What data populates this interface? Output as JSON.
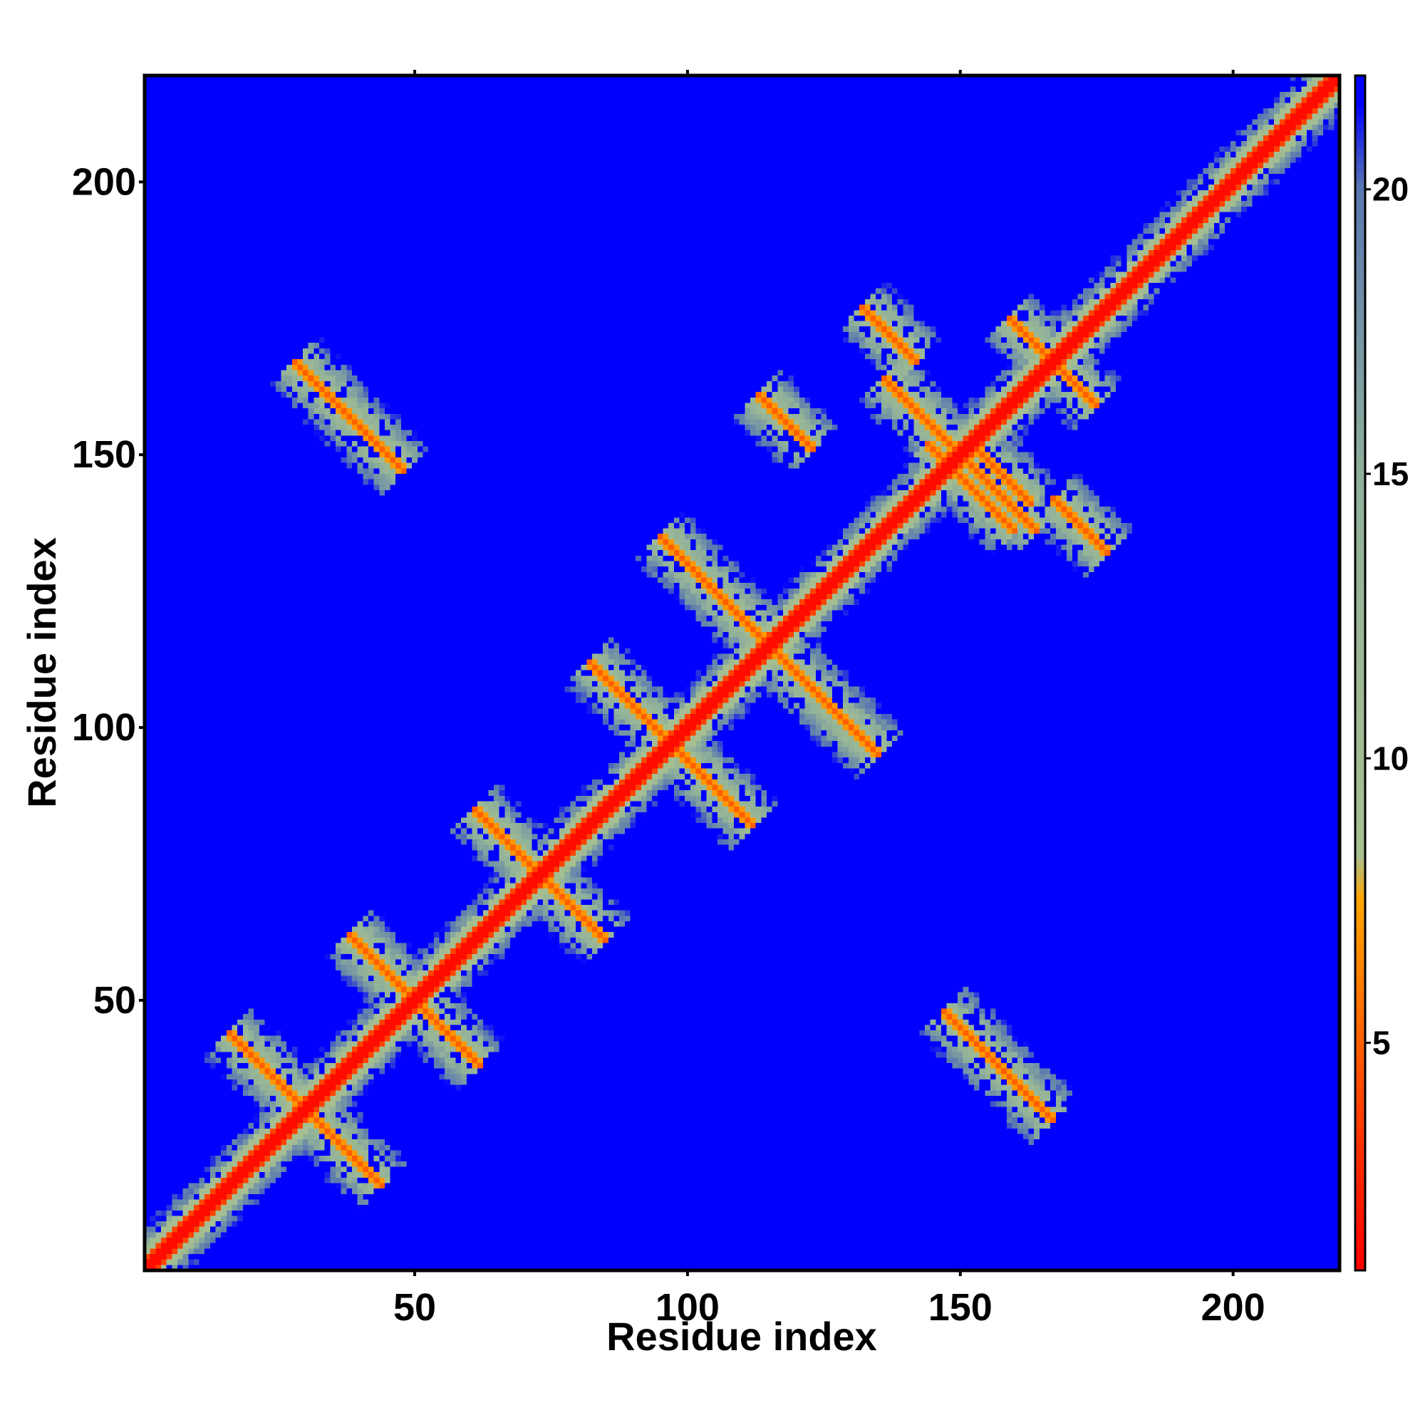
{
  "chart_data": {
    "type": "heatmap",
    "title": "",
    "xlabel": "Residue index",
    "ylabel": "Residue index",
    "xlim": [
      1,
      219
    ],
    "ylim": [
      1,
      219
    ],
    "x_ticks": [
      50,
      100,
      150,
      200
    ],
    "y_ticks": [
      50,
      100,
      150,
      200
    ],
    "x_tick_labels": [
      "50",
      "100",
      "150",
      "200"
    ],
    "y_tick_labels": [
      "50",
      "100",
      "150",
      "200"
    ],
    "colorbar": {
      "range": [
        1,
        22
      ],
      "ticks": [
        5,
        10,
        15,
        20
      ],
      "tick_labels": [
        "5",
        "10",
        "15",
        "20"
      ],
      "stops": [
        {
          "value": 1,
          "color": "#ff0000"
        },
        {
          "value": 4,
          "color": "#ff4400"
        },
        {
          "value": 7.5,
          "color": "#ffa500"
        },
        {
          "value": 8.3,
          "color": "#a8c090"
        },
        {
          "value": 15,
          "color": "#8fb09a"
        },
        {
          "value": 20,
          "color": "#5a78b0"
        },
        {
          "value": 21.5,
          "color": "#0000ff"
        }
      ]
    },
    "background_value": 22,
    "background_color": "#0000ff",
    "grid": false,
    "contact_features": [
      {
        "kind": "diagonal",
        "from": 1,
        "to": 219
      },
      {
        "kind": "antiparallel",
        "center": [
          30,
          30
        ],
        "span": 14
      },
      {
        "kind": "antiparallel",
        "center": [
          50,
          50
        ],
        "span": 12
      },
      {
        "kind": "antiparallel",
        "center": [
          73,
          73
        ],
        "span": 12
      },
      {
        "kind": "antiparallel",
        "center": [
          97,
          97
        ],
        "span": 15
      },
      {
        "kind": "antiparallel",
        "center": [
          115,
          115
        ],
        "span": 20
      },
      {
        "kind": "antiparallel",
        "center": [
          150,
          150
        ],
        "span": 14
      },
      {
        "kind": "antiparallel",
        "center": [
          167,
          167
        ],
        "span": 8
      },
      {
        "kind": "antiparallel",
        "center": [
          38,
          157
        ],
        "span": 10
      },
      {
        "kind": "antiparallel",
        "center": [
          157,
          38
        ],
        "span": 10
      },
      {
        "kind": "antiparallel",
        "center": [
          152,
          144
        ],
        "span": 8
      },
      {
        "kind": "antiparallel",
        "center": [
          118,
          156
        ],
        "span": 5
      },
      {
        "kind": "antiparallel",
        "center": [
          158,
          146
        ],
        "span": 5
      },
      {
        "kind": "antiparallel",
        "center": [
          172,
          137
        ],
        "span": 5
      },
      {
        "kind": "antiparallel",
        "center": [
          137,
          172
        ],
        "span": 5
      }
    ]
  }
}
